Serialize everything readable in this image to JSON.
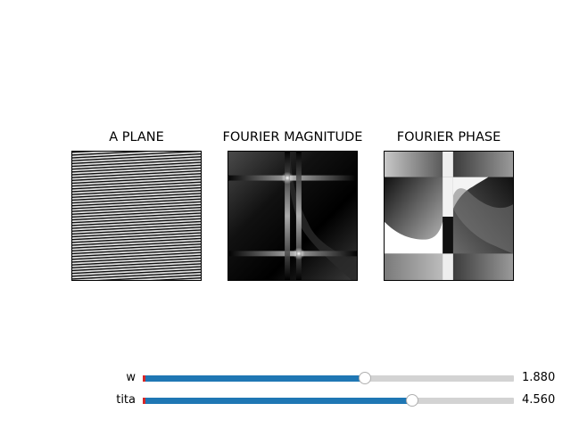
{
  "panels": [
    {
      "id": "plane",
      "title": "A PLANE",
      "left": 80
    },
    {
      "id": "magnitude",
      "title": "FOURIER MAGNITUDE",
      "left": 255
    },
    {
      "id": "phase",
      "title": "FOURIER PHASE",
      "left": 430
    }
  ],
  "sliders": [
    {
      "name": "w",
      "label": "w",
      "value": 1.88,
      "value_text": "1.880",
      "min": 0,
      "max": 3.14
    },
    {
      "name": "tita",
      "label": "tita",
      "value": 4.56,
      "value_text": "4.560",
      "min": 0,
      "max": 6.28
    }
  ],
  "colors": {
    "slider_fill": "#1f77b4",
    "slider_track": "#d3d3d3",
    "slider_init_marker": "#d62728"
  }
}
